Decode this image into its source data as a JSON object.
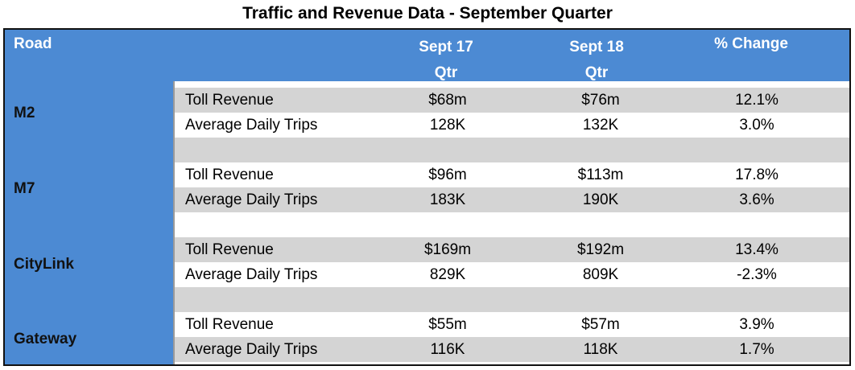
{
  "title": "Traffic and Revenue Data - September Quarter",
  "header": {
    "road": "Road",
    "col1_line1": "Sept 17",
    "col1_line2": "Qtr",
    "col2_line1": "Sept 18",
    "col2_line2": "Qtr",
    "col3": "% Change"
  },
  "roads": [
    {
      "name": "M2",
      "rows": [
        {
          "metric": "Toll Revenue",
          "sept17": "$68m",
          "sept18": "$76m",
          "change": "12.1%"
        },
        {
          "metric": "Average Daily Trips",
          "sept17": "128K",
          "sept18": "132K",
          "change": "3.0%"
        }
      ]
    },
    {
      "name": "M7",
      "rows": [
        {
          "metric": "Toll Revenue",
          "sept17": "$96m",
          "sept18": "$113m",
          "change": "17.8%"
        },
        {
          "metric": "Average Daily Trips",
          "sept17": "183K",
          "sept18": "190K",
          "change": "3.6%"
        }
      ]
    },
    {
      "name": "CityLink",
      "rows": [
        {
          "metric": "Toll Revenue",
          "sept17": "$169m",
          "sept18": "$192m",
          "change": "13.4%"
        },
        {
          "metric": "Average Daily Trips",
          "sept17": "829K",
          "sept18": "809K",
          "change": "-2.3%"
        }
      ]
    },
    {
      "name": "Gateway",
      "rows": [
        {
          "metric": "Toll Revenue",
          "sept17": "$55m",
          "sept18": "$57m",
          "change": "3.9%"
        },
        {
          "metric": "Average Daily Trips",
          "sept17": "116K",
          "sept18": "118K",
          "change": "1.7%"
        }
      ]
    }
  ],
  "colors": {
    "header_blue": "#4c8ad3",
    "row_shade": "#d4d4d4"
  }
}
